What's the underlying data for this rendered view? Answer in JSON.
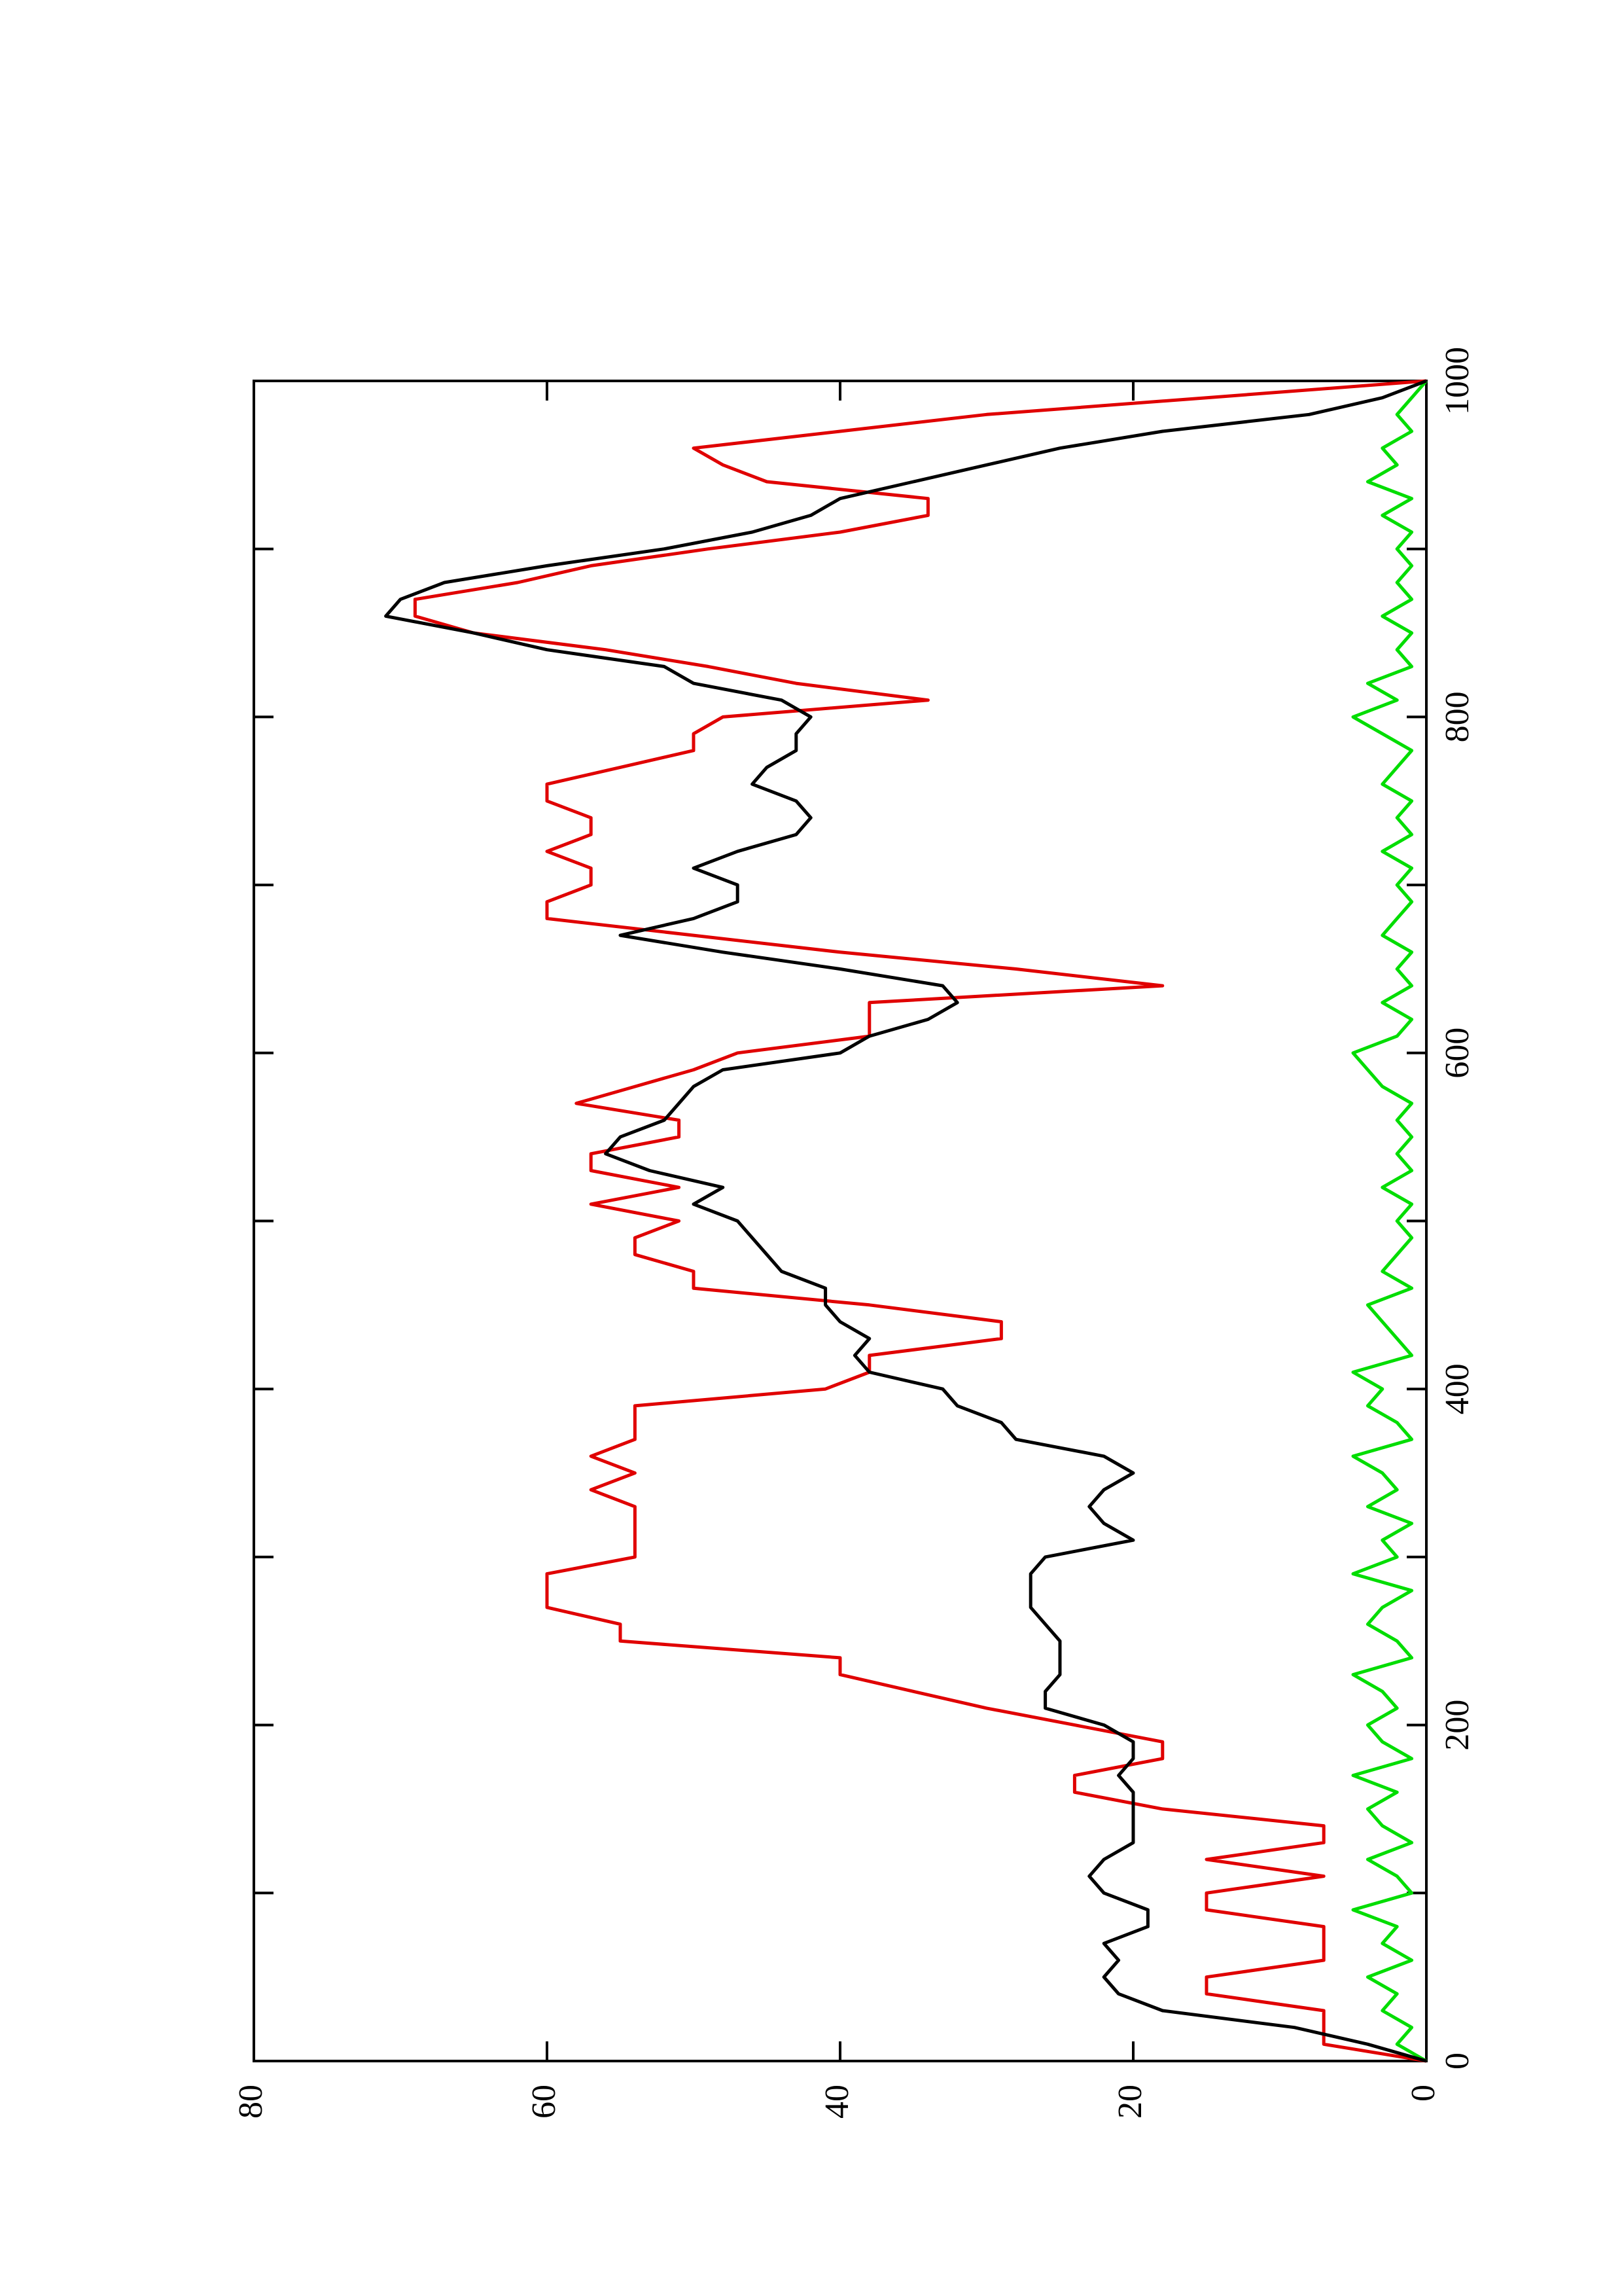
{
  "chart_data": {
    "type": "line",
    "xlim": [
      0,
      1000
    ],
    "ylim": [
      0,
      80
    ],
    "xticks": [
      0,
      200,
      400,
      600,
      800,
      1000
    ],
    "xminor_ticks": [
      100,
      300,
      500,
      700,
      900
    ],
    "yticks": [
      0,
      20,
      40,
      60,
      80
    ],
    "rotated": true,
    "x": [
      0,
      10,
      20,
      30,
      40,
      50,
      60,
      70,
      80,
      90,
      100,
      110,
      120,
      130,
      140,
      150,
      160,
      170,
      180,
      190,
      200,
      210,
      220,
      230,
      240,
      250,
      260,
      270,
      280,
      290,
      300,
      310,
      320,
      330,
      340,
      350,
      360,
      370,
      380,
      390,
      400,
      410,
      420,
      430,
      440,
      450,
      460,
      470,
      480,
      490,
      500,
      510,
      520,
      530,
      540,
      550,
      560,
      570,
      580,
      590,
      600,
      610,
      620,
      630,
      640,
      650,
      660,
      670,
      680,
      690,
      700,
      710,
      720,
      730,
      740,
      750,
      760,
      770,
      780,
      790,
      800,
      810,
      820,
      830,
      840,
      850,
      860,
      870,
      880,
      890,
      900,
      910,
      920,
      930,
      940,
      950,
      960,
      970,
      980,
      990,
      1000
    ],
    "series": [
      {
        "color": "#00dd00",
        "values": [
          0,
          2,
          1,
          3,
          2,
          4,
          1,
          3,
          2,
          5,
          1,
          2,
          4,
          1,
          3,
          4,
          2,
          5,
          1,
          3,
          4,
          2,
          3,
          5,
          1,
          2,
          4,
          3,
          1,
          5,
          2,
          3,
          1,
          4,
          2,
          3,
          5,
          1,
          2,
          4,
          3,
          5,
          1,
          2,
          3,
          4,
          1,
          3,
          2,
          1,
          2,
          1,
          3,
          1,
          2,
          1,
          2,
          1,
          3,
          4,
          5,
          2,
          1,
          3,
          1,
          2,
          1,
          3,
          2,
          1,
          2,
          1,
          3,
          1,
          2,
          1,
          3,
          2,
          1,
          3,
          5,
          2,
          4,
          1,
          2,
          1,
          3,
          1,
          2,
          1,
          2,
          1,
          3,
          1,
          4,
          2,
          3,
          1,
          2,
          1,
          0
        ]
      },
      {
        "color": "#e00000",
        "values": [
          0,
          7,
          7,
          7,
          15,
          15,
          7,
          7,
          7,
          15,
          15,
          7,
          15,
          7,
          7,
          18,
          24,
          24,
          18,
          18,
          24,
          30,
          35,
          40,
          40,
          55,
          55,
          60,
          60,
          60,
          54,
          54,
          54,
          54,
          57,
          54,
          57,
          54,
          54,
          54,
          41,
          38,
          38,
          29,
          29,
          38,
          50,
          50,
          54,
          54,
          51,
          57,
          51,
          57,
          57,
          51,
          51,
          58,
          54,
          50,
          47,
          38,
          38,
          38,
          18,
          28,
          40,
          50,
          60,
          60,
          57,
          57,
          60,
          57,
          57,
          60,
          60,
          55,
          50,
          50,
          48,
          34,
          43,
          49,
          56,
          65,
          69,
          69,
          62,
          57,
          49,
          40,
          34,
          34,
          45,
          48,
          50,
          40,
          30,
          15,
          0
        ]
      },
      {
        "color": "#000000",
        "values": [
          0,
          4,
          9,
          18,
          21,
          22,
          21,
          22,
          19,
          19,
          22,
          23,
          22,
          20,
          20,
          20,
          20,
          21,
          20,
          20,
          22,
          26,
          26,
          25,
          25,
          25,
          26,
          27,
          27,
          27,
          26,
          20,
          22,
          23,
          22,
          20,
          22,
          28,
          29,
          32,
          33,
          38,
          39,
          38,
          40,
          41,
          41,
          44,
          45,
          46,
          47,
          50,
          48,
          53,
          56,
          55,
          52,
          51,
          50,
          48,
          40,
          38,
          34,
          32,
          33,
          40,
          48,
          55,
          50,
          47,
          47,
          50,
          47,
          43,
          42,
          43,
          46,
          45,
          43,
          43,
          42,
          44,
          50,
          52,
          60,
          65,
          71,
          70,
          67,
          60,
          52,
          46,
          42,
          40,
          35,
          30,
          25,
          18,
          8,
          3,
          0
        ]
      }
    ]
  }
}
